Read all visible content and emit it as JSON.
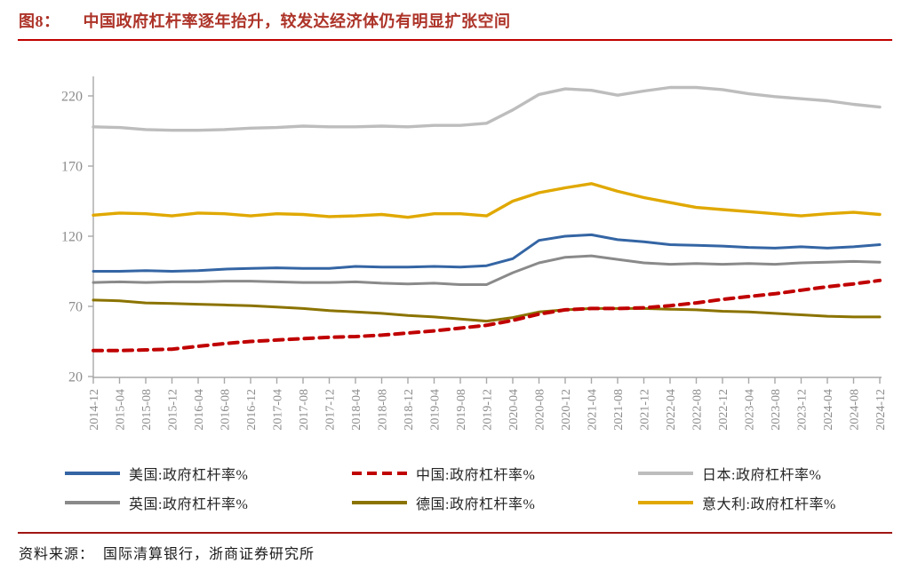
{
  "header": {
    "figure_label": "图8：",
    "title": "中国政府杠杆率逐年抬升，较发达经济体仍有明显扩张空间",
    "title_color": "#AD3328",
    "rule_color": "#C00000"
  },
  "footer": {
    "source_label": "资料来源：",
    "source_text": "国际清算银行，浙商证券研究所",
    "rule_color": "#A01613"
  },
  "chart_data": {
    "type": "line",
    "title": "中国政府杠杆率逐年抬升，较发达经济体仍有明显扩张空间",
    "xlabel": "",
    "ylabel": "政府杠杆率 %",
    "grid": false,
    "legend_position": "bottom",
    "ylim": [
      20,
      233
    ],
    "y_ticks": [
      20,
      70,
      120,
      170,
      220
    ],
    "axis_color": "#A8A8A8",
    "tick_label_color": "#8C8C8C",
    "x_labels": [
      "2014-12",
      "2015-04",
      "2015-08",
      "2015-12",
      "2016-04",
      "2016-08",
      "2016-12",
      "2017-04",
      "2017-08",
      "2017-12",
      "2018-04",
      "2018-08",
      "2018-12",
      "2019-04",
      "2019-08",
      "2019-12",
      "2020-04",
      "2020-08",
      "2020-12",
      "2021-04",
      "2021-08",
      "2021-12",
      "2022-04",
      "2022-08",
      "2022-12",
      "2023-04",
      "2023-08",
      "2023-12",
      "2024-04",
      "2024-08",
      "2024-12"
    ],
    "series": [
      {
        "name": "美国",
        "legend_label": "美国:政府杠杆率%",
        "color": "#3465A4",
        "dash": false,
        "values": [
          95,
          95,
          95.5,
          95,
          95.5,
          96.5,
          97,
          97.5,
          97,
          97,
          98.5,
          98,
          98,
          98.5,
          98,
          99,
          104,
          117,
          120,
          121,
          117.5,
          116,
          114,
          113.5,
          113,
          112,
          111.5,
          112.5,
          111.5,
          112.5,
          114
        ]
      },
      {
        "name": "中国",
        "legend_label": "中国:政府杠杆率%",
        "color": "#C00000",
        "dash": true,
        "values": [
          38.5,
          38.5,
          39,
          39.5,
          41.5,
          43.5,
          45,
          46,
          47,
          48,
          48.5,
          49.5,
          51,
          52.5,
          54.5,
          56.5,
          60,
          64.5,
          67.5,
          68.5,
          68.5,
          69,
          70.5,
          72.5,
          75,
          77,
          79,
          81.5,
          84,
          86,
          88.5
        ]
      },
      {
        "name": "日本",
        "legend_label": "日本:政府杠杆率%",
        "color": "#BDBDBD",
        "dash": false,
        "values": [
          198,
          197.5,
          196,
          195.5,
          195.5,
          196,
          197,
          197.5,
          198.5,
          198,
          198,
          198.5,
          198,
          199,
          199,
          200.5,
          210,
          221,
          225,
          224,
          220.5,
          223.5,
          226,
          226,
          224.5,
          221.5,
          219.5,
          218,
          216.5,
          214,
          212
        ]
      },
      {
        "name": "英国",
        "legend_label": "英国:政府杠杆率%",
        "color": "#8A8A8A",
        "dash": false,
        "values": [
          87,
          87.5,
          87,
          87.5,
          87.5,
          88,
          88,
          87.5,
          87,
          87,
          87.5,
          86.5,
          86,
          86.5,
          85.5,
          85.5,
          94,
          101,
          105,
          106,
          103.5,
          101,
          100,
          100.5,
          100,
          100.5,
          100,
          101,
          101.5,
          102,
          101.5
        ]
      },
      {
        "name": "德国",
        "legend_label": "德国:政府杠杆率%",
        "color": "#8B7300",
        "dash": false,
        "values": [
          74.5,
          74,
          72.5,
          72,
          71.5,
          71,
          70.5,
          69.5,
          68.5,
          67,
          66,
          65,
          63.5,
          62.5,
          61,
          59.5,
          62,
          66,
          67.5,
          68.5,
          68.5,
          68.5,
          68,
          67.5,
          66.5,
          66,
          65,
          64,
          63,
          62.5,
          62.5
        ]
      },
      {
        "name": "意大利",
        "legend_label": "意大利:政府杠杆率%",
        "color": "#E0A800",
        "dash": false,
        "values": [
          135,
          136.5,
          136,
          134.5,
          136.5,
          136,
          134.5,
          136,
          135.5,
          134,
          134.5,
          135.5,
          133.5,
          136,
          136,
          134.5,
          145,
          151,
          154.5,
          157.5,
          152,
          147.5,
          144,
          140.5,
          139,
          137.5,
          136,
          134.5,
          136,
          137,
          135.5
        ]
      }
    ]
  }
}
